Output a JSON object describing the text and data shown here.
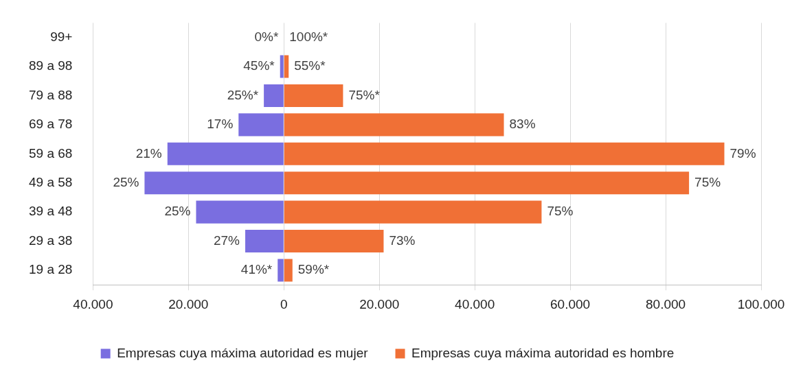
{
  "chart_data": {
    "type": "bar",
    "orientation": "horizontal",
    "stacked": true,
    "categories": [
      "99+",
      "89 a 98",
      "79 a 88",
      "69 a 78",
      "59 a 68",
      "49 a 58",
      "39 a 48",
      "29 a 38",
      "19 a 28"
    ],
    "series": [
      {
        "name": "Empresas cuya máxima autoridad es mujer",
        "color": "#7a6ee0",
        "values": [
          0,
          -800,
          -4200,
          -9500,
          -24400,
          -29200,
          -18400,
          -8100,
          -1300
        ]
      },
      {
        "name": "Empresas cuya máxima autoridad es hombre",
        "color": "#f07036",
        "values": [
          null,
          1000,
          12400,
          46100,
          92300,
          84900,
          54000,
          20900,
          1800
        ]
      }
    ],
    "annotations": [
      {
        "text": "0%*",
        "x": 0,
        "y": "99+"
      },
      {
        "text": "45%*",
        "x": -800,
        "y": "89 a 98"
      },
      {
        "text": "25%*",
        "x": -4200,
        "y": "79 a 88"
      },
      {
        "text": "17%",
        "x": -9500,
        "y": "69 a 78"
      },
      {
        "text": "21%",
        "x": -24400,
        "y": "59 a 68"
      },
      {
        "text": "25%",
        "x": -29200,
        "y": "49 a 58"
      },
      {
        "text": "25%",
        "x": -18400,
        "y": "39 a 48"
      },
      {
        "text": "27%",
        "x": -8100,
        "y": "29 a 38"
      },
      {
        "text": "41%*",
        "x": -1300,
        "y": "19 a 28"
      },
      {
        "text": "100%*",
        "x": 0,
        "y": "99+"
      },
      {
        "text": "55%*",
        "x": 1000,
        "y": "89 a 98"
      },
      {
        "text": "75%*",
        "x": 12400,
        "y": "79 a 88"
      },
      {
        "text": "83%",
        "x": 46100,
        "y": "69 a 78"
      },
      {
        "text": "79%",
        "x": 92300,
        "y": "59 a 68"
      },
      {
        "text": "75%",
        "x": 84900,
        "y": "49 a 58"
      },
      {
        "text": "75%",
        "x": 54000,
        "y": "39 a 48"
      },
      {
        "text": "73%",
        "x": 20900,
        "y": "29 a 38"
      },
      {
        "text": "59%*",
        "x": 1800,
        "y": "19 a 28"
      }
    ],
    "xlim": [
      -40000,
      100000
    ],
    "xticks": [
      {
        "value": -40000,
        "label": "40.000"
      },
      {
        "value": -20000,
        "label": "20.000"
      },
      0,
      {
        "value": 20000,
        "label": "20.000"
      },
      {
        "value": 40000,
        "label": "40.000"
      },
      {
        "value": 60000,
        "label": "60.000"
      },
      {
        "value": 80000,
        "label": "80.000"
      },
      {
        "value": 100000,
        "label": "100.000"
      }
    ],
    "grid": "x",
    "legend": "bottom"
  }
}
